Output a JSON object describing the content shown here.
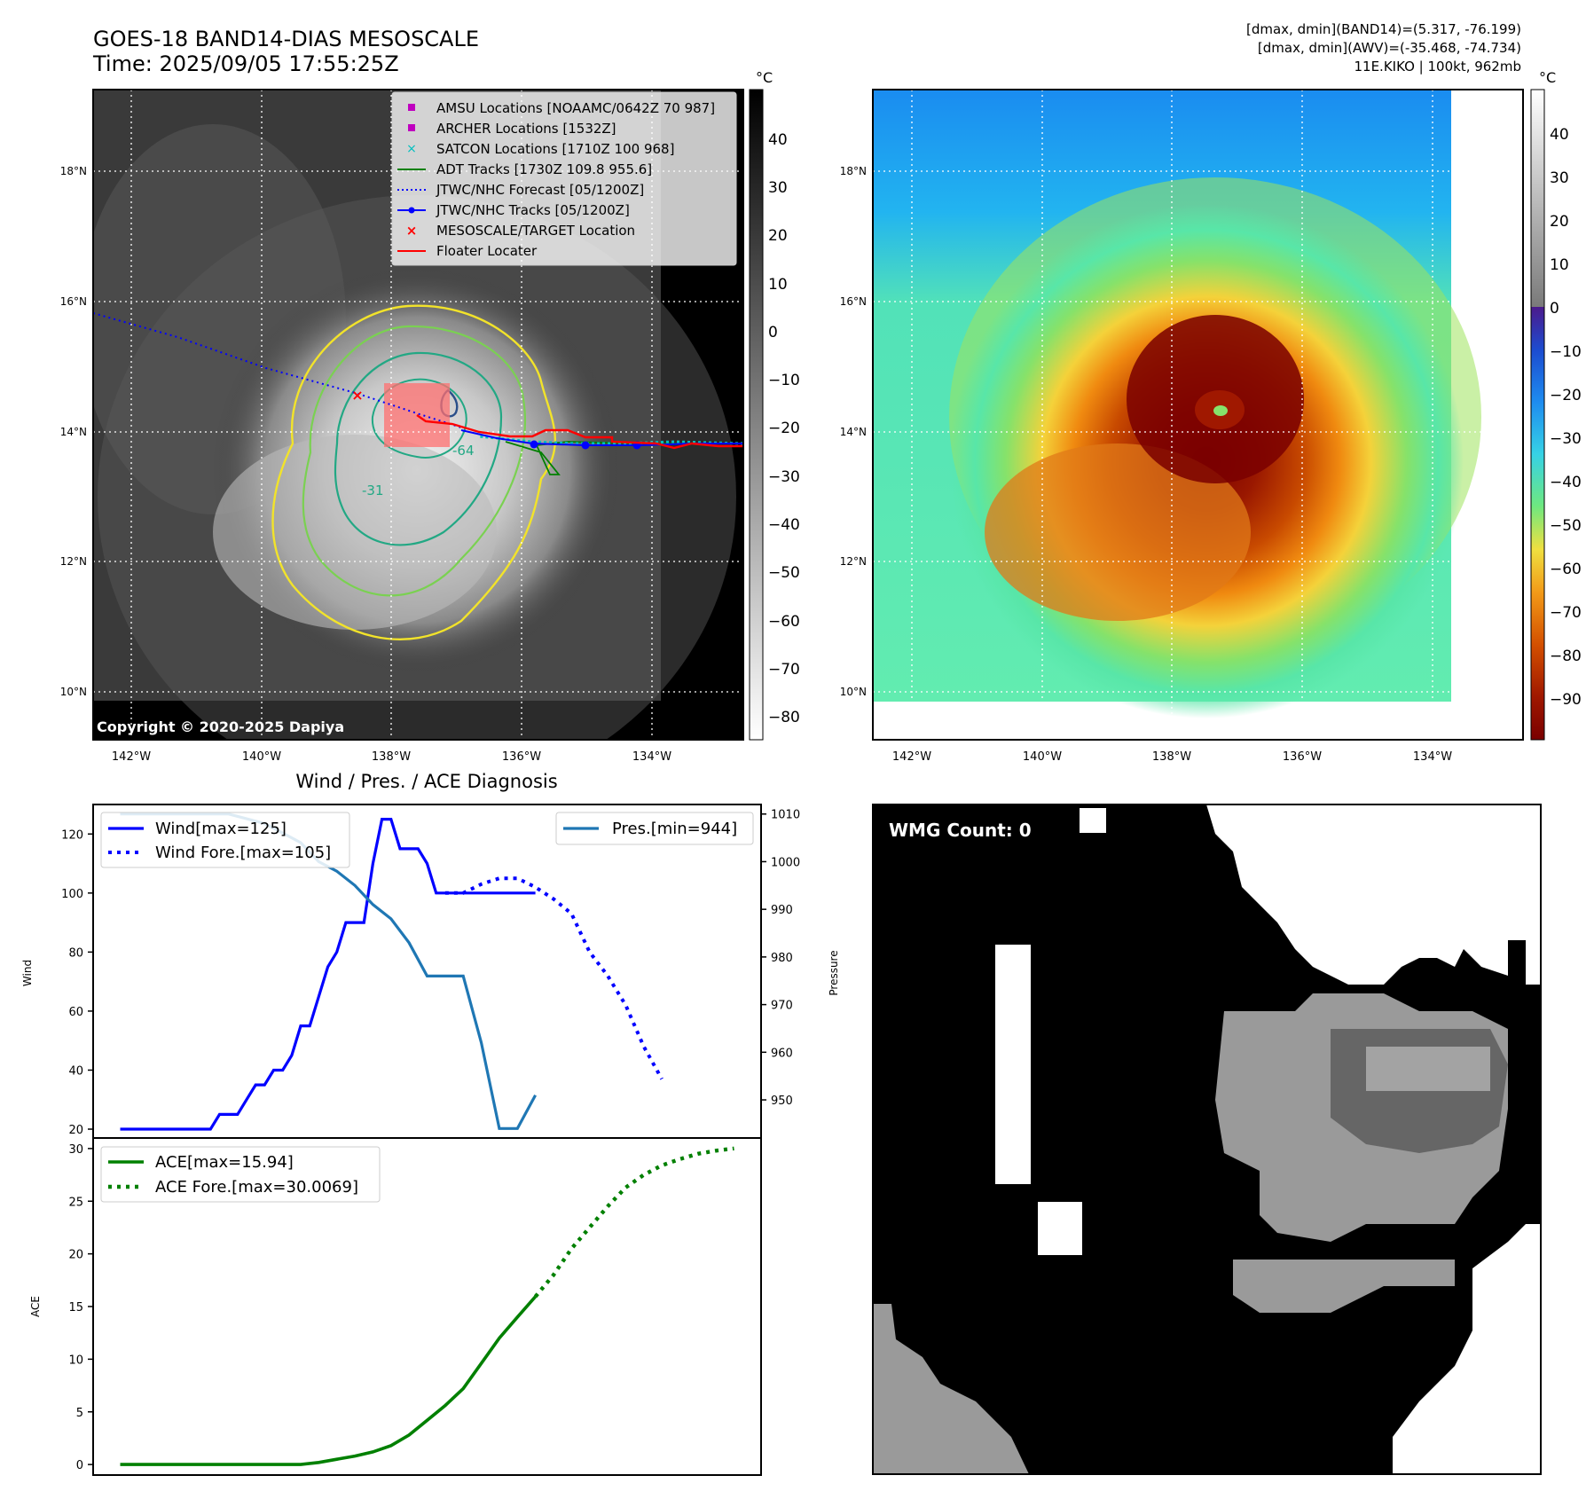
{
  "header": {
    "title_line1": "GOES-18 BAND14-DIAS MESOSCALE",
    "title_line2": "Time: 2025/09/05 17:55:25Z",
    "info_line1": "[dmax, dmin](BAND14)=(5.317, -76.199)",
    "info_line2": "[dmax, dmin](AWV)=(-35.468, -74.734)",
    "info_line3": "11E.KIKO | 100kt, 962mb"
  },
  "maps": {
    "lon_ticks": [
      "142°W",
      "140°W",
      "138°W",
      "136°W",
      "134°W"
    ],
    "lat_ticks": [
      "18°N",
      "16°N",
      "14°N",
      "12°N",
      "10°N"
    ],
    "contour_labels": [
      "-64",
      "-31"
    ],
    "copyright": "Copyright © 2020-2025 Dapiya",
    "colors": {
      "gray_bg": "#3a3a3a",
      "contour_yellow": "#f2e32a",
      "contour_green": "#7ad151",
      "contour_teal": "#22a884",
      "contour_navy": "#2a4f8a",
      "nhc_blue": "#0000ff",
      "floater_red": "#ff0000"
    }
  },
  "legend": {
    "items": [
      {
        "label": "AMSU Locations [NOAAMC/0642Z 70 987]",
        "marker": "square",
        "color": "#bf00bf"
      },
      {
        "label": "ARCHER Locations [1532Z]",
        "marker": "square",
        "color": "#bf00bf"
      },
      {
        "label": "SATCON Locations [1710Z 100 968]",
        "marker": "x",
        "color": "#00bfbf"
      },
      {
        "label": "ADT Tracks [1730Z 109.8 955.6]",
        "marker": "line",
        "color": "#008000"
      },
      {
        "label": "JTWC/NHC Forecast [05/1200Z]",
        "marker": "dotted",
        "color": "#0000ff"
      },
      {
        "label": "JTWC/NHC Tracks [05/1200Z]",
        "marker": "line-dot",
        "color": "#0000ff"
      },
      {
        "label": "MESOSCALE/TARGET Location",
        "marker": "x",
        "color": "#ff0000"
      },
      {
        "label": "Floater Locater",
        "marker": "line",
        "color": "#ff0000"
      }
    ]
  },
  "colorbar_gray": {
    "unit": "°C",
    "ticks": [
      "40",
      "30",
      "20",
      "10",
      "0",
      "−10",
      "−20",
      "−30",
      "−40",
      "−50",
      "−60",
      "−70",
      "−80"
    ]
  },
  "colorbar_color": {
    "unit": "°C",
    "ticks": [
      "40",
      "30",
      "20",
      "10",
      "0",
      "−10",
      "−20",
      "−30",
      "−40",
      "−50",
      "−60",
      "−70",
      "−80",
      "−90"
    ]
  },
  "wmg": {
    "label": "WMG Count: 0"
  },
  "chart_data": [
    {
      "type": "line",
      "title": "Wind / Pres. / ACE Diagnosis",
      "ylabel": "Wind",
      "ylabel_right": "Pressure",
      "ylim": [
        17,
        130
      ],
      "ylim_right": [
        942,
        1012
      ],
      "yticks": [
        20,
        40,
        60,
        80,
        100,
        120
      ],
      "yticks_right": [
        950,
        960,
        970,
        980,
        990,
        1000,
        1010
      ],
      "legend_left": [
        "Wind[max=125]",
        "Wind Fore.[max=105]"
      ],
      "legend_right": [
        "Pres.[min=944]"
      ],
      "series": [
        {
          "name": "Wind[max=125]",
          "color": "#0000ff",
          "style": "solid",
          "x": [
            0,
            1,
            2,
            3,
            4,
            5,
            6,
            7,
            8,
            9,
            10,
            11,
            12,
            13,
            14,
            15,
            16,
            17,
            18,
            19,
            20,
            21,
            22,
            23,
            24,
            25,
            26,
            27,
            28,
            29,
            30,
            31,
            32,
            33,
            34,
            35,
            36,
            37,
            38,
            39,
            40,
            41,
            42,
            43,
            44,
            45,
            46
          ],
          "values": [
            20,
            20,
            20,
            20,
            20,
            20,
            20,
            20,
            20,
            20,
            20,
            25,
            25,
            25,
            30,
            35,
            35,
            40,
            40,
            45,
            55,
            55,
            65,
            75,
            80,
            90,
            90,
            90,
            110,
            125,
            125,
            115,
            115,
            115,
            110,
            100,
            100,
            100,
            100,
            100,
            100,
            100,
            100,
            100,
            100,
            100,
            100
          ]
        },
        {
          "name": "Wind Fore.[max=105]",
          "color": "#0000ff",
          "style": "dotted",
          "x": [
            36,
            38,
            40,
            42,
            44,
            46,
            48,
            50,
            52,
            54,
            56,
            58,
            60
          ],
          "values": [
            100,
            100,
            103,
            105,
            105,
            102,
            98,
            93,
            80,
            72,
            62,
            48,
            37
          ]
        },
        {
          "name": "Pres.[min=944]",
          "color": "#1f77b4",
          "style": "solid",
          "axis": "right",
          "x": [
            0,
            2,
            4,
            6,
            8,
            10,
            12,
            14,
            16,
            18,
            20,
            22,
            24,
            26,
            28,
            30,
            32,
            34,
            36,
            38,
            40,
            42,
            44,
            46
          ],
          "values": [
            1010,
            1010,
            1010,
            1010,
            1010,
            1010,
            1010,
            1009,
            1008,
            1006,
            1004,
            1000,
            998,
            995,
            991,
            988,
            983,
            976,
            976,
            976,
            962,
            944,
            944,
            951
          ]
        }
      ]
    },
    {
      "type": "line",
      "ylabel": "ACE",
      "ylim": [
        -1,
        31
      ],
      "yticks": [
        0,
        5,
        10,
        15,
        20,
        25,
        30
      ],
      "legend": [
        "ACE[max=15.94]",
        "ACE Fore.[max=30.0069]"
      ],
      "series": [
        {
          "name": "ACE[max=15.94]",
          "color": "#008000",
          "style": "solid",
          "x": [
            0,
            4,
            8,
            12,
            16,
            20,
            22,
            24,
            26,
            28,
            30,
            32,
            34,
            36,
            38,
            40,
            42,
            44,
            46
          ],
          "values": [
            0,
            0,
            0,
            0,
            0,
            0,
            0.2,
            0.5,
            0.8,
            1.2,
            1.8,
            2.8,
            4.2,
            5.6,
            7.2,
            9.6,
            12,
            14,
            15.94
          ]
        },
        {
          "name": "ACE Fore.[max=30.0069]",
          "color": "#008000",
          "style": "dotted",
          "x": [
            46,
            48,
            50,
            52,
            54,
            56,
            58,
            60,
            62,
            64,
            66,
            68
          ],
          "values": [
            15.94,
            18,
            20.5,
            22.5,
            24.5,
            26.3,
            27.5,
            28.4,
            29,
            29.5,
            29.8,
            30.0069
          ]
        }
      ]
    }
  ]
}
